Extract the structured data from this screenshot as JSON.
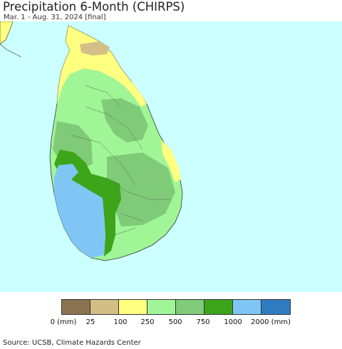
{
  "title": "Precipitation 6-Month (CHIRPS)",
  "subtitle": "Mar. 1 - Aug. 31, 2024 [final]",
  "source": "Source: UCSB, Climate Hazards Center",
  "legend": {
    "colors": [
      "#8b7250",
      "#d3bf86",
      "#ffff80",
      "#a0f597",
      "#7fcb78",
      "#3ca51a",
      "#80c6f5",
      "#2e7cbf"
    ],
    "labels": [
      "0 (mm)",
      "25",
      "100",
      "250",
      "500",
      "750",
      "1000",
      "2000 (mm)"
    ]
  },
  "map": {
    "ocean_color": "#ccffff",
    "land_color_offshore": "#ffffff"
  }
}
